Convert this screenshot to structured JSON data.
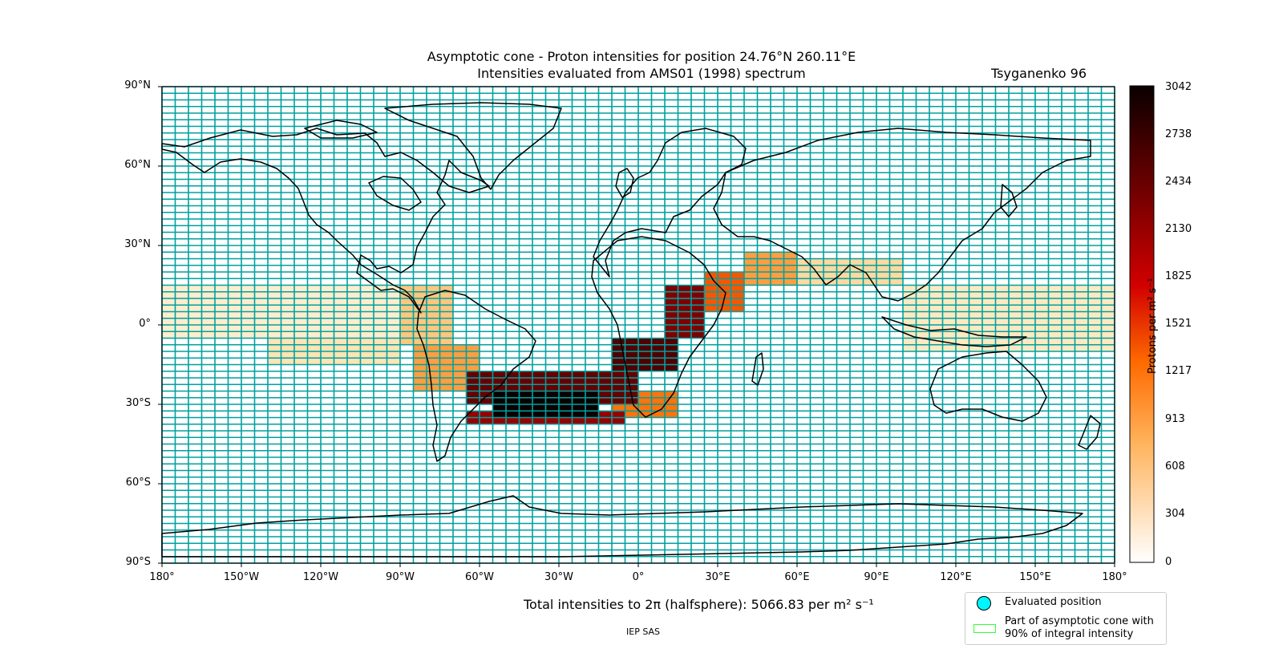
{
  "title": {
    "line1": "Asymptotic cone - Proton intensities for position 24.76°N 260.11°E",
    "line2": "Intensities evaluated from AMS01 (1998) spectrum",
    "model": "Tsyganenko 96"
  },
  "axes": {
    "lat_ticks": [
      "90°N",
      "60°N",
      "30°N",
      "0°",
      "30°S",
      "60°S",
      "90°S"
    ],
    "lon_ticks": [
      "180°",
      "150°W",
      "120°W",
      "90°W",
      "60°W",
      "30°W",
      "0°",
      "30°E",
      "60°E",
      "90°E",
      "120°E",
      "150°E",
      "180°"
    ]
  },
  "colorbar": {
    "ticks": [
      "3042",
      "2738",
      "2434",
      "2130",
      "1825",
      "1521",
      "1217",
      "913",
      "608",
      "304",
      "0"
    ],
    "label": "Protons per m² s⁻¹"
  },
  "total_text": "Total intensities to 2π (halfsphere): 5066.83 per m² s⁻¹",
  "credit": "IEP SAS",
  "legend": {
    "evaluated_position": "Evaluated position",
    "cone_90": "Part of asymptotic cone with 90% of integral intensity"
  },
  "colors": {
    "grid": "#00a0a0",
    "coast": "#000000",
    "cone_outline": "#33ff33",
    "marker": "#00f5ff"
  },
  "map_data": {
    "type": "heatmap",
    "projection": "plate-carree",
    "xlim": [
      -180,
      180
    ],
    "ylim": [
      -90,
      90
    ],
    "cell_deg": [
      5,
      2.5
    ],
    "vmin": 0,
    "vmax": 3042,
    "colormap": "gist_heat_r",
    "bands": [
      {
        "lat": [
          -37.5,
          -32.5
        ],
        "lon": [
          -65,
          -5
        ],
        "level": 0.7
      },
      {
        "lat": [
          -35,
          -25
        ],
        "lon": [
          -55,
          -15
        ],
        "level": 1.0
      },
      {
        "lat": [
          -30,
          -17.5
        ],
        "lon": [
          -65,
          0
        ],
        "level": 0.8
      },
      {
        "lat": [
          -17.5,
          -5
        ],
        "lon": [
          -10,
          15
        ],
        "level": 0.85
      },
      {
        "lat": [
          -5,
          15
        ],
        "lon": [
          10,
          25
        ],
        "level": 0.75
      },
      {
        "lat": [
          5,
          20
        ],
        "lon": [
          25,
          40
        ],
        "level": 0.45
      },
      {
        "lat": [
          15,
          27.5
        ],
        "lon": [
          40,
          60
        ],
        "level": 0.3
      },
      {
        "lat": [
          15,
          25
        ],
        "lon": [
          60,
          100
        ],
        "level": 0.15
      },
      {
        "lat": [
          -25,
          -7.5
        ],
        "lon": [
          -85,
          -60
        ],
        "level": 0.3
      },
      {
        "lat": [
          -7.5,
          15
        ],
        "lon": [
          -90,
          -70
        ],
        "level": 0.2
      },
      {
        "lat": [
          -15,
          -5
        ],
        "lon": [
          -140,
          -90
        ],
        "level": 0.12
      },
      {
        "lat": [
          -5,
          15
        ],
        "lon": [
          -180,
          -85
        ],
        "level": 0.08
      },
      {
        "lat": [
          -10,
          15
        ],
        "lon": [
          100,
          180
        ],
        "level": 0.1
      },
      {
        "lat": [
          -35,
          -25
        ],
        "lon": [
          -10,
          15
        ],
        "level": 0.4
      }
    ]
  }
}
